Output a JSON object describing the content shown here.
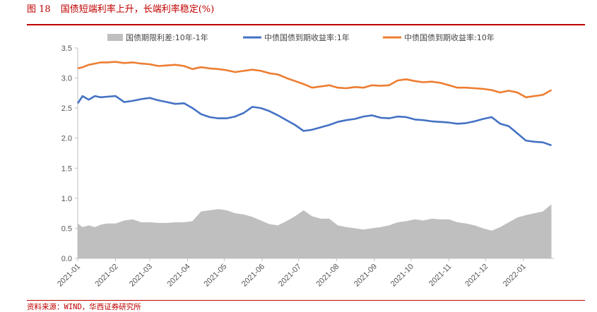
{
  "figure": {
    "number": "图 18",
    "title": "国债短端利率上升，长端利率稳定(%)",
    "source": "资料来源：WIND，华西证券研究所"
  },
  "chart_data": {
    "type": "line",
    "title": "国债短端利率上升，长端利率稳定(%)",
    "xlabel": "",
    "ylabel": "",
    "ylim": [
      0.0,
      3.5
    ],
    "yticks": [
      "0.0",
      "0.5",
      "1.0",
      "1.5",
      "2.0",
      "2.5",
      "3.0",
      "3.5"
    ],
    "xticks": [
      "2021-01",
      "2021-02",
      "2021-03",
      "2021-04",
      "2021-05",
      "2021-06",
      "2021-07",
      "2021-08",
      "2021-09",
      "2021-10",
      "2021-11",
      "2021-12",
      "2022-01"
    ],
    "xlim": [
      "2021-01-01",
      "2022-01-26"
    ],
    "grid": false,
    "legend_position": "top",
    "x": [
      "2021-01-01",
      "2021-01-05",
      "2021-01-10",
      "2021-01-15",
      "2021-01-20",
      "2021-01-25",
      "2021-02-01",
      "2021-02-08",
      "2021-02-15",
      "2021-02-22",
      "2021-03-01",
      "2021-03-08",
      "2021-03-15",
      "2021-03-22",
      "2021-03-29",
      "2021-04-05",
      "2021-04-12",
      "2021-04-19",
      "2021-04-26",
      "2021-05-03",
      "2021-05-10",
      "2021-05-17",
      "2021-05-24",
      "2021-05-31",
      "2021-06-07",
      "2021-06-14",
      "2021-06-21",
      "2021-06-28",
      "2021-07-05",
      "2021-07-12",
      "2021-07-19",
      "2021-07-26",
      "2021-08-02",
      "2021-08-09",
      "2021-08-16",
      "2021-08-23",
      "2021-08-30",
      "2021-09-06",
      "2021-09-13",
      "2021-09-20",
      "2021-09-27",
      "2021-10-04",
      "2021-10-11",
      "2021-10-18",
      "2021-10-25",
      "2021-11-01",
      "2021-11-08",
      "2021-11-15",
      "2021-11-22",
      "2021-11-29",
      "2021-12-06",
      "2021-12-13",
      "2021-12-20",
      "2021-12-27",
      "2022-01-03",
      "2022-01-10",
      "2022-01-17",
      "2022-01-24"
    ],
    "series": [
      {
        "name": "国债期限利差:10年-1年",
        "kind": "area",
        "color": "#bfbfbf",
        "values": [
          0.58,
          0.52,
          0.55,
          0.52,
          0.56,
          0.58,
          0.58,
          0.63,
          0.65,
          0.6,
          0.6,
          0.59,
          0.59,
          0.6,
          0.6,
          0.62,
          0.78,
          0.8,
          0.82,
          0.8,
          0.75,
          0.73,
          0.69,
          0.63,
          0.57,
          0.55,
          0.62,
          0.7,
          0.8,
          0.7,
          0.66,
          0.66,
          0.55,
          0.52,
          0.5,
          0.48,
          0.5,
          0.52,
          0.55,
          0.6,
          0.62,
          0.65,
          0.63,
          0.66,
          0.65,
          0.65,
          0.6,
          0.58,
          0.55,
          0.5,
          0.46,
          0.52,
          0.6,
          0.68,
          0.72,
          0.75,
          0.78,
          0.9
        ]
      },
      {
        "name": "中债国债到期收益率:1年",
        "kind": "line",
        "color": "#4472c4",
        "values": [
          2.58,
          2.7,
          2.64,
          2.7,
          2.68,
          2.69,
          2.7,
          2.6,
          2.62,
          2.65,
          2.67,
          2.63,
          2.6,
          2.57,
          2.58,
          2.5,
          2.4,
          2.35,
          2.33,
          2.33,
          2.36,
          2.42,
          2.52,
          2.5,
          2.45,
          2.38,
          2.3,
          2.22,
          2.12,
          2.14,
          2.18,
          2.22,
          2.27,
          2.3,
          2.32,
          2.36,
          2.38,
          2.34,
          2.33,
          2.36,
          2.35,
          2.31,
          2.3,
          2.28,
          2.27,
          2.26,
          2.24,
          2.25,
          2.28,
          2.32,
          2.35,
          2.24,
          2.2,
          2.08,
          1.96,
          1.94,
          1.93,
          1.88
        ]
      },
      {
        "name": "中债国债到期收益率:10年",
        "kind": "line",
        "color": "#ed7d31",
        "values": [
          3.16,
          3.18,
          3.22,
          3.24,
          3.26,
          3.26,
          3.27,
          3.25,
          3.26,
          3.24,
          3.23,
          3.2,
          3.21,
          3.22,
          3.2,
          3.15,
          3.18,
          3.16,
          3.15,
          3.13,
          3.1,
          3.12,
          3.14,
          3.12,
          3.08,
          3.06,
          3.0,
          2.95,
          2.9,
          2.84,
          2.86,
          2.88,
          2.84,
          2.83,
          2.85,
          2.84,
          2.88,
          2.87,
          2.88,
          2.96,
          2.98,
          2.95,
          2.93,
          2.94,
          2.92,
          2.88,
          2.84,
          2.84,
          2.83,
          2.82,
          2.8,
          2.76,
          2.79,
          2.76,
          2.68,
          2.7,
          2.72,
          2.8
        ]
      }
    ]
  }
}
